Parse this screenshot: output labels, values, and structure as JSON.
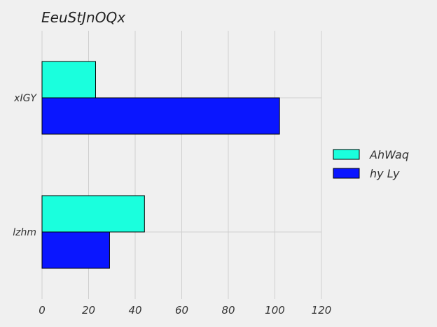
{
  "chart_data": {
    "type": "bar",
    "orientation": "horizontal",
    "title": "EeuStJnOQx",
    "categories": [
      "xIGY",
      "lzhm"
    ],
    "series": [
      {
        "name": "AhWaq",
        "values": [
          23,
          44
        ],
        "color": "#1affdd"
      },
      {
        "name": "hy Ly",
        "values": [
          102,
          29
        ],
        "color": "#0a16ff"
      }
    ],
    "xlim": [
      0,
      120
    ],
    "xticks": [
      0,
      20,
      40,
      60,
      80,
      100,
      120
    ],
    "grid": true,
    "legend_position": "right"
  }
}
